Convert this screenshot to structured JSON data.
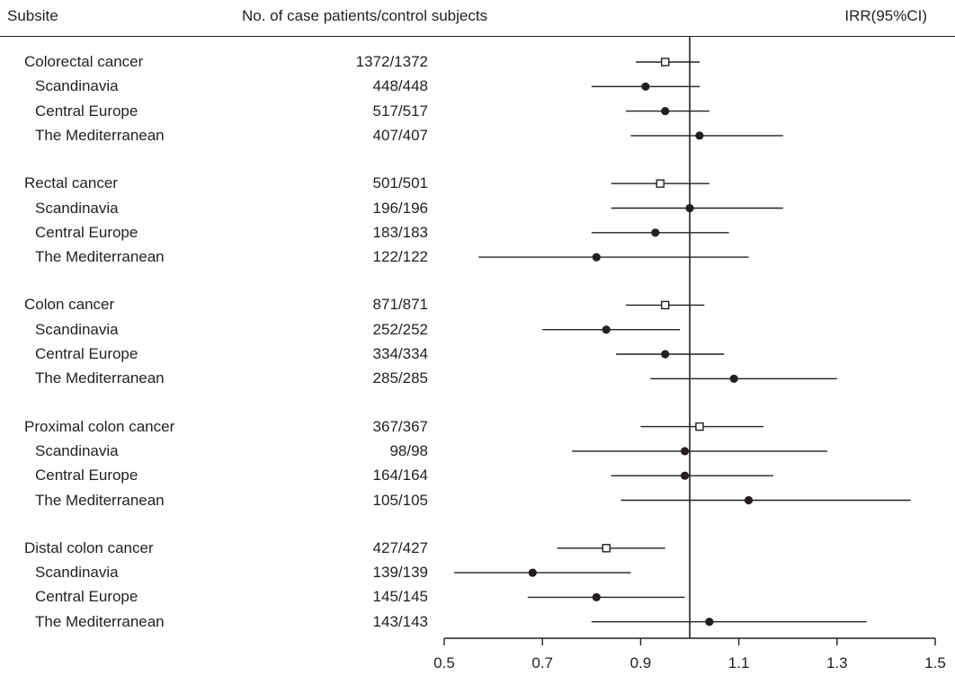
{
  "headers": {
    "subsite": "Subsite",
    "counts": "No. of case patients/control subjects",
    "irr": "IRR(95%CI)"
  },
  "chart_data": {
    "type": "forest",
    "reference_line": 1.0,
    "xlim": [
      0.5,
      1.5
    ],
    "xticks": [
      "0.5",
      "0.7",
      "0.9",
      "1.1",
      "1.3",
      "1.5"
    ],
    "rows": [
      {
        "label": "Colorectal cancer",
        "level": "group",
        "count": "1372/1372",
        "irr": 0.95,
        "lo": 0.89,
        "hi": 1.02,
        "marker": "open-square"
      },
      {
        "label": "Scandinavia",
        "level": "sub",
        "count": "448/448",
        "irr": 0.91,
        "lo": 0.8,
        "hi": 1.02,
        "marker": "filled-circle"
      },
      {
        "label": "Central Europe",
        "level": "sub",
        "count": "517/517",
        "irr": 0.95,
        "lo": 0.87,
        "hi": 1.04,
        "marker": "filled-circle"
      },
      {
        "label": "The Mediterranean",
        "level": "sub",
        "count": "407/407",
        "irr": 1.02,
        "lo": 0.88,
        "hi": 1.19,
        "marker": "filled-circle"
      },
      {
        "label": "Rectal cancer",
        "level": "group",
        "count": "501/501",
        "irr": 0.94,
        "lo": 0.84,
        "hi": 1.04,
        "marker": "open-square"
      },
      {
        "label": "Scandinavia",
        "level": "sub",
        "count": "196/196",
        "irr": 1.0,
        "lo": 0.84,
        "hi": 1.19,
        "marker": "filled-circle"
      },
      {
        "label": "Central Europe",
        "level": "sub",
        "count": "183/183",
        "irr": 0.93,
        "lo": 0.8,
        "hi": 1.08,
        "marker": "filled-circle"
      },
      {
        "label": "The Mediterranean",
        "level": "sub",
        "count": "122/122",
        "irr": 0.81,
        "lo": 0.57,
        "hi": 1.12,
        "marker": "filled-circle"
      },
      {
        "label": "Colon cancer",
        "level": "group",
        "count": "871/871",
        "irr": 0.95,
        "lo": 0.87,
        "hi": 1.03,
        "marker": "open-square"
      },
      {
        "label": "Scandinavia",
        "level": "sub",
        "count": "252/252",
        "irr": 0.83,
        "lo": 0.7,
        "hi": 0.98,
        "marker": "filled-circle"
      },
      {
        "label": "Central Europe",
        "level": "sub",
        "count": "334/334",
        "irr": 0.95,
        "lo": 0.85,
        "hi": 1.07,
        "marker": "filled-circle"
      },
      {
        "label": "The Mediterranean",
        "level": "sub",
        "count": "285/285",
        "irr": 1.09,
        "lo": 0.92,
        "hi": 1.3,
        "marker": "filled-circle"
      },
      {
        "label": "Proximal colon cancer",
        "level": "group",
        "count": "367/367",
        "irr": 1.02,
        "lo": 0.9,
        "hi": 1.15,
        "marker": "open-square"
      },
      {
        "label": "Scandinavia",
        "level": "sub",
        "count": "98/98",
        "irr": 0.99,
        "lo": 0.76,
        "hi": 1.28,
        "marker": "filled-circle"
      },
      {
        "label": "Central Europe",
        "level": "sub",
        "count": "164/164",
        "irr": 0.99,
        "lo": 0.84,
        "hi": 1.17,
        "marker": "filled-circle"
      },
      {
        "label": "The Mediterranean",
        "level": "sub",
        "count": "105/105",
        "irr": 1.12,
        "lo": 0.86,
        "hi": 1.45,
        "marker": "filled-circle"
      },
      {
        "label": "Distal colon cancer",
        "level": "group",
        "count": "427/427",
        "irr": 0.83,
        "lo": 0.73,
        "hi": 0.95,
        "marker": "open-square"
      },
      {
        "label": "Scandinavia",
        "level": "sub",
        "count": "139/139",
        "irr": 0.68,
        "lo": 0.52,
        "hi": 0.88,
        "marker": "filled-circle"
      },
      {
        "label": "Central Europe",
        "level": "sub",
        "count": "145/145",
        "irr": 0.81,
        "lo": 0.67,
        "hi": 0.99,
        "marker": "filled-circle"
      },
      {
        "label": "The Mediterranean",
        "level": "sub",
        "count": "143/143",
        "irr": 1.04,
        "lo": 0.8,
        "hi": 1.36,
        "marker": "filled-circle"
      }
    ]
  }
}
